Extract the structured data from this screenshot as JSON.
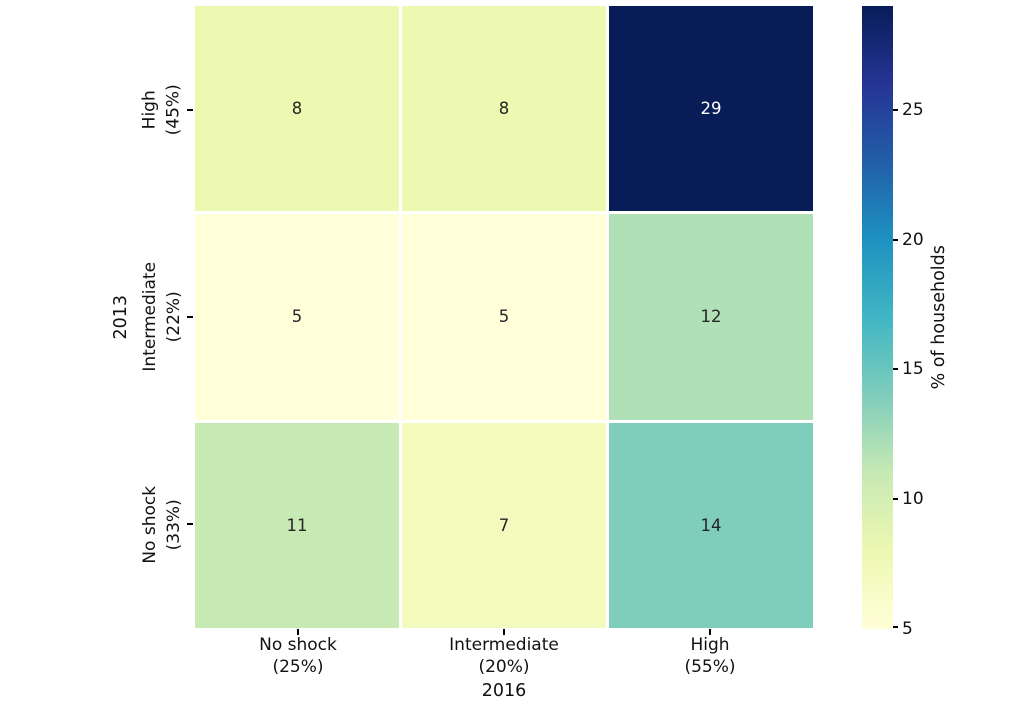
{
  "chart_data": {
    "type": "heatmap",
    "title": "",
    "xlabel": "2016",
    "ylabel": "2013",
    "x_categories": [
      "No shock\n(25%)",
      "Intermediate\n(20%)",
      "High\n(55%)"
    ],
    "y_categories": [
      "High\n(45%)",
      "Intermediate\n(22%)",
      "No shock\n(33%)"
    ],
    "values": [
      [
        8,
        8,
        29
      ],
      [
        5,
        5,
        12
      ],
      [
        11,
        7,
        14
      ]
    ],
    "annotations_shown": true,
    "grid_line_color": "#ffffff",
    "annotation_dark_text_color": "#262626",
    "annotation_light_text_color": "#ffffff",
    "colorbar": {
      "label": "% of households",
      "ticks": [
        5,
        10,
        15,
        20,
        25
      ],
      "vmin": 5,
      "vmax": 29,
      "position": "right"
    },
    "colormap": {
      "name": "YlGnBu",
      "stops": [
        "#ffffd9",
        "#edf8b1",
        "#c7e9b4",
        "#7fcdbb",
        "#41b6c4",
        "#1d91c0",
        "#225ea8",
        "#253494",
        "#081d58"
      ]
    },
    "legend_position": "none",
    "background_color": "#ffffff",
    "tick_color": "#000000"
  }
}
